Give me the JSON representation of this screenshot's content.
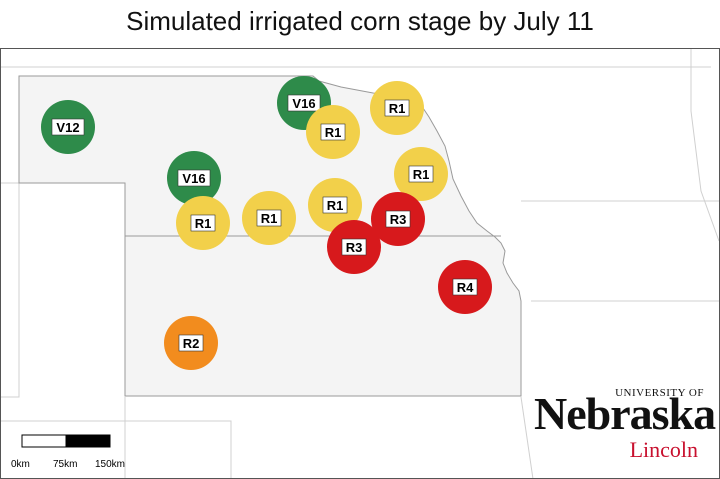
{
  "title": "Simulated irrigated corn stage by July 11",
  "colors": {
    "v_stage": "#2e8b4a",
    "r1": "#f2d04a",
    "r2": "#f28c1e",
    "r3": "#d7191c",
    "r4": "#d7191c",
    "state_fill": "#f4f4f4",
    "border": "#9a9a9a"
  },
  "sites": [
    {
      "stage": "V12"
    },
    {
      "stage": "V16"
    },
    {
      "stage": "R1"
    },
    {
      "stage": "R1"
    },
    {
      "stage": "V16"
    },
    {
      "stage": "R1"
    },
    {
      "stage": "R1"
    },
    {
      "stage": "R1"
    },
    {
      "stage": "R1"
    },
    {
      "stage": "R3"
    },
    {
      "stage": "R3"
    },
    {
      "stage": "R4"
    },
    {
      "stage": "R2"
    }
  ],
  "scale_bar": {
    "labels": [
      "0km",
      "75km",
      "150km"
    ]
  },
  "logo": {
    "top": "UNIVERSITY OF",
    "main": "Nebraska",
    "sub": "Lincoln"
  }
}
